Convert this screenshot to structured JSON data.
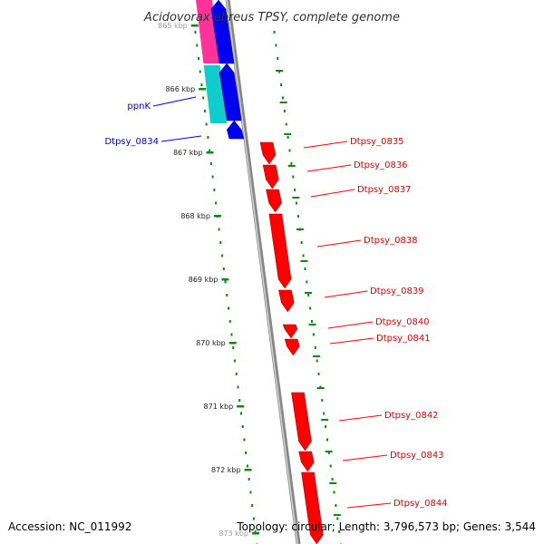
{
  "title": "Acidovorax ebreus TPSY, complete genome",
  "footer": {
    "accession": "Accession: NC_011992",
    "summary": "Topology: circular; Length: 3,796,573 bp; Genes: 3,544"
  },
  "scale_ticks": [
    {
      "label": "865 kbp",
      "kbp": 865
    },
    {
      "label": "866 kbp",
      "kbp": 866
    },
    {
      "label": "867 kbp",
      "kbp": 867
    },
    {
      "label": "868 kbp",
      "kbp": 868
    },
    {
      "label": "869 kbp",
      "kbp": 869
    },
    {
      "label": "870 kbp",
      "kbp": 870
    },
    {
      "label": "871 kbp",
      "kbp": 871
    },
    {
      "label": "872 kbp",
      "kbp": 872
    },
    {
      "label": "873 kbp",
      "kbp": 873
    }
  ],
  "genes": [
    {
      "label": "ppnK",
      "strand": "reverse",
      "color": "#0000ee"
    },
    {
      "label": "Dtpsy_0834",
      "strand": "reverse",
      "color": "#0000ee"
    },
    {
      "label": "Dtpsy_0835",
      "strand": "forward",
      "color": "#ff0000"
    },
    {
      "label": "Dtpsy_0836",
      "strand": "forward",
      "color": "#ff0000"
    },
    {
      "label": "Dtpsy_0837",
      "strand": "forward",
      "color": "#ff0000"
    },
    {
      "label": "Dtpsy_0838",
      "strand": "forward",
      "color": "#ff0000"
    },
    {
      "label": "Dtpsy_0839",
      "strand": "forward",
      "color": "#ff0000"
    },
    {
      "label": "Dtpsy_0840",
      "strand": "forward",
      "color": "#ff0000"
    },
    {
      "label": "Dtpsy_0841",
      "strand": "forward",
      "color": "#ff0000"
    },
    {
      "label": "Dtpsy_0842",
      "strand": "forward",
      "color": "#ff0000"
    },
    {
      "label": "Dtpsy_0843",
      "strand": "forward",
      "color": "#ff0000"
    },
    {
      "label": "Dtpsy_0844",
      "strand": "forward",
      "color": "#ff0000"
    }
  ],
  "colors": {
    "cds_forward": "#ff0000",
    "cds_reverse": "#0000ee",
    "cog_pink": "#ff3399",
    "cog_cyan": "#11cccc",
    "backbone": "#888888",
    "ticks": "#118811"
  }
}
